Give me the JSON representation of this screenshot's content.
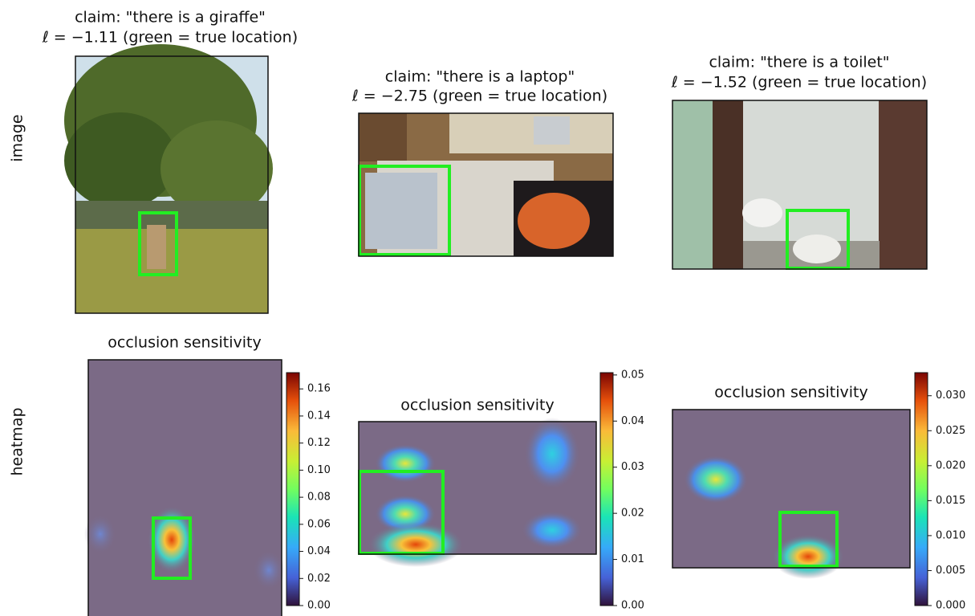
{
  "row_labels": [
    "image",
    "heatmap"
  ],
  "panels": [
    {
      "claim": "claim: \"there is a giraffe\"",
      "score": "ℓ = −1.11  (green = true location)",
      "heatmap_title": "occlusion sensitivity",
      "colorbar": {
        "lim": [
          0,
          0.172
        ],
        "ticks": [
          {
            "value": 0,
            "label": "0.00"
          },
          {
            "value": 0.02,
            "label": "0.02"
          },
          {
            "value": 0.04,
            "label": "0.04"
          },
          {
            "value": 0.06,
            "label": "0.06"
          },
          {
            "value": 0.08,
            "label": "0.08"
          },
          {
            "value": 0.1,
            "label": "0.10"
          },
          {
            "value": 0.12,
            "label": "0.12"
          },
          {
            "value": 0.14,
            "label": "0.14"
          },
          {
            "value": 0.16,
            "label": "0.16"
          }
        ]
      }
    },
    {
      "claim": "claim: \"there is a laptop\"",
      "score": "ℓ = −2.75  (green = true location)",
      "heatmap_title": "occlusion sensitivity",
      "colorbar": {
        "lim": [
          0,
          0.0505
        ],
        "ticks": [
          {
            "value": 0,
            "label": "0.00"
          },
          {
            "value": 0.01,
            "label": "0.01"
          },
          {
            "value": 0.02,
            "label": "0.02"
          },
          {
            "value": 0.03,
            "label": "0.03"
          },
          {
            "value": 0.04,
            "label": "0.04"
          },
          {
            "value": 0.05,
            "label": "0.05"
          }
        ]
      }
    },
    {
      "claim": "claim: \"there is a toilet\"",
      "score": "ℓ = −1.52  (green = true location)",
      "heatmap_title": "occlusion sensitivity",
      "colorbar": {
        "lim": [
          0,
          0.0333
        ],
        "ticks": [
          {
            "value": 0,
            "label": "0.000"
          },
          {
            "value": 0.005,
            "label": "0.005"
          },
          {
            "value": 0.01,
            "label": "0.010"
          },
          {
            "value": 0.015,
            "label": "0.015"
          },
          {
            "value": 0.02,
            "label": "0.020"
          },
          {
            "value": 0.025,
            "label": "0.025"
          },
          {
            "value": 0.03,
            "label": "0.030"
          }
        ]
      }
    }
  ]
}
